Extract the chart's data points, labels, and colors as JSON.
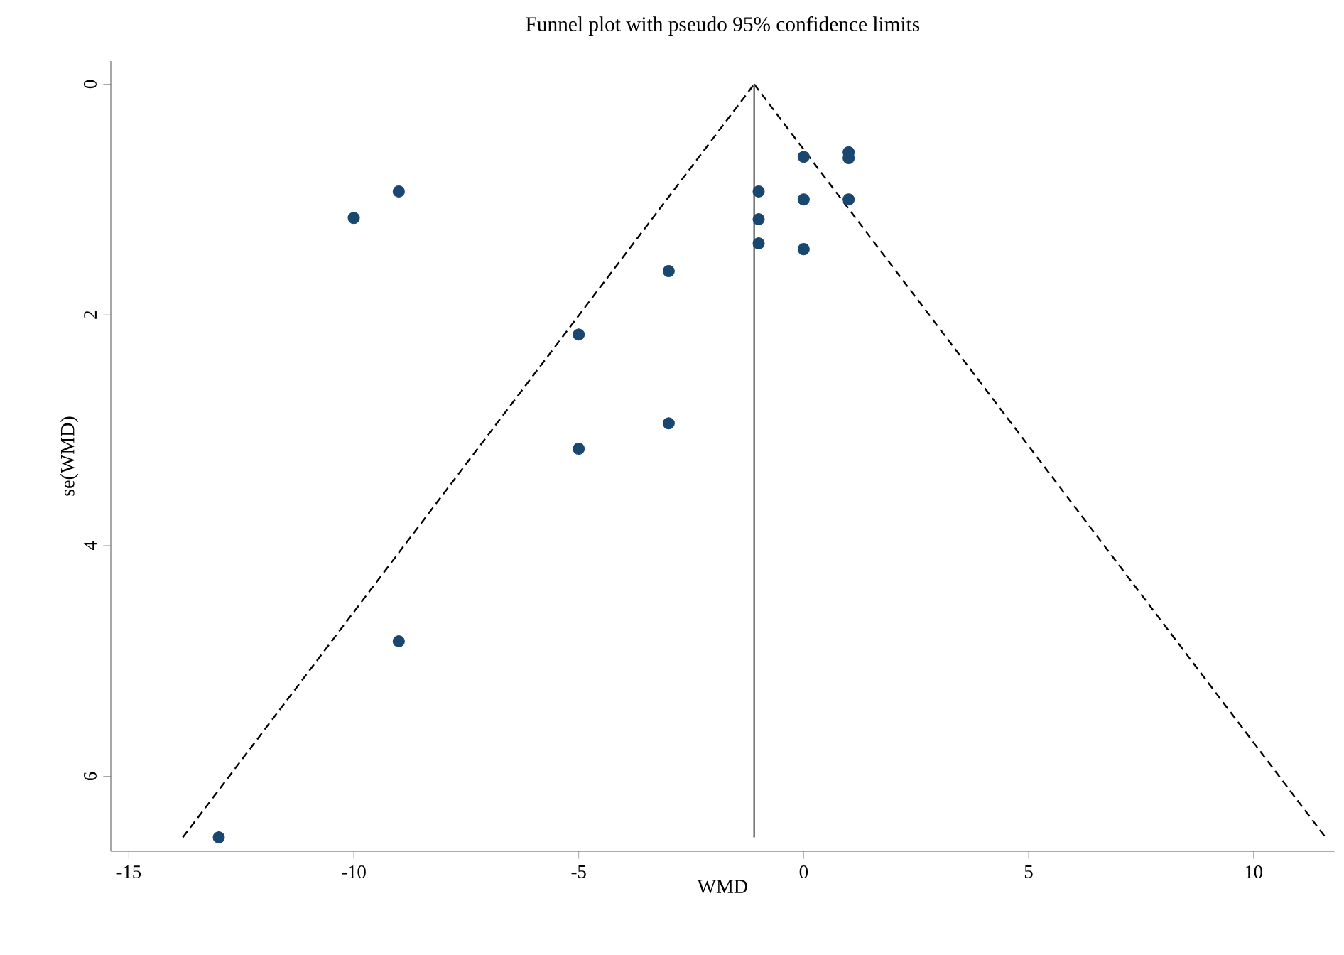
{
  "chart_data": {
    "type": "scatter",
    "title": "Funnel plot with pseudo 95% confidence limits",
    "xlabel": "WMD",
    "ylabel": "se(WMD)",
    "xlim": [
      -15.4,
      11.8
    ],
    "ylim": [
      6.65,
      -0.2
    ],
    "xticks": [
      -15,
      -10,
      -5,
      0,
      5,
      10
    ],
    "yticks": [
      0,
      2,
      4,
      6
    ],
    "grid": false,
    "marker": "circle",
    "series": [
      {
        "color": "#1a476f",
        "x": [
          0,
          1,
          1,
          -1,
          0,
          1,
          -1,
          -1,
          0,
          -3,
          -5,
          -3,
          -5,
          -9,
          -10,
          -9,
          -13
        ],
        "values": [
          0.63,
          0.59,
          0.64,
          0.93,
          1.0,
          1.0,
          1.17,
          1.38,
          1.43,
          1.62,
          2.17,
          2.94,
          3.16,
          4.83,
          1.16,
          0.93,
          6.53
        ]
      },
      {
        "type": "line",
        "marker": "none",
        "color": "#000000",
        "line_style": "dashed",
        "x": [
          -13.8,
          -1.1
        ],
        "values": [
          6.53,
          0
        ]
      },
      {
        "type": "line",
        "marker": "none",
        "color": "#000000",
        "line_style": "dashed",
        "x": [
          -1.1,
          11.6
        ],
        "values": [
          0,
          6.53
        ]
      },
      {
        "type": "line",
        "marker": "none",
        "color": "#666666",
        "line_style": "solid",
        "x": [
          -1.1,
          -1.1
        ],
        "values": [
          0,
          6.53
        ]
      }
    ]
  }
}
